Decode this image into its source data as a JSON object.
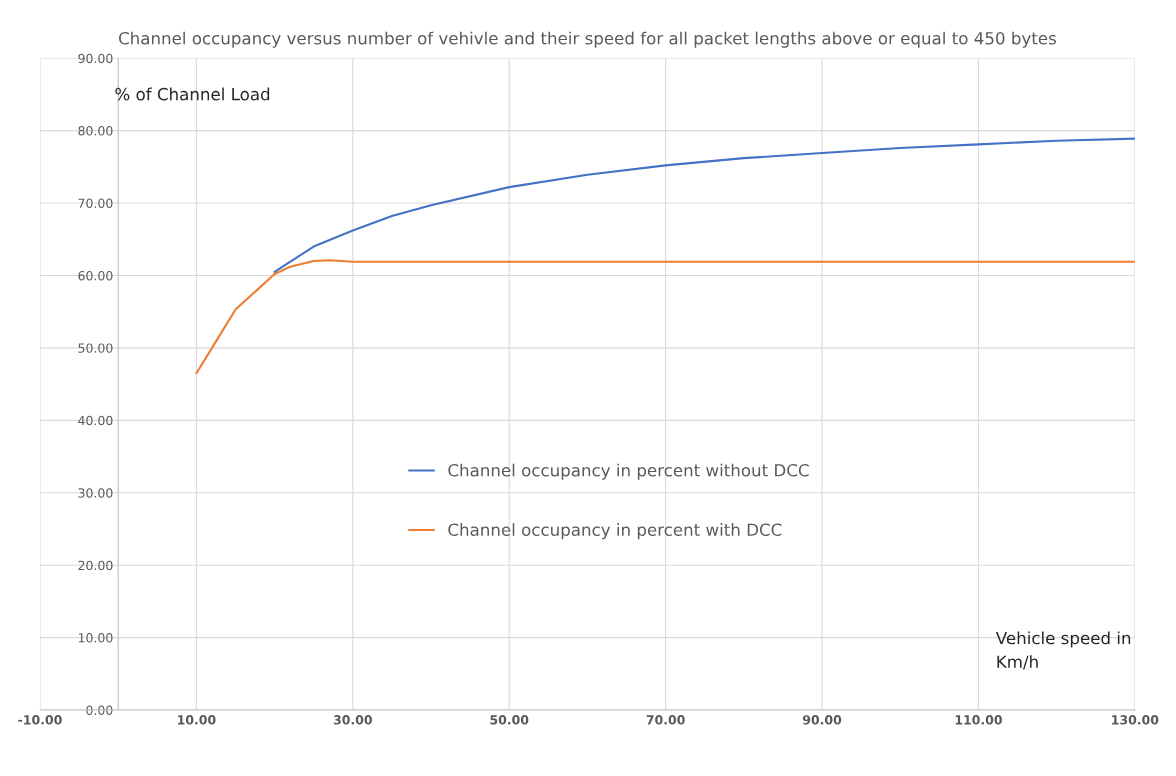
{
  "chart_data": {
    "type": "line",
    "title": "Channel occupancy versus number of vehivle and their speed for all packet lengths above or equal to 450 bytes",
    "ylabel": "% of Channel Load",
    "xlabel": "Vehicle speed in Km/h",
    "xlim": [
      -10,
      130
    ],
    "ylim": [
      0,
      90
    ],
    "xticks": [
      {
        "value": -10,
        "label": "-10.00"
      },
      {
        "value": 10,
        "label": "10.00"
      },
      {
        "value": 30,
        "label": "30.00"
      },
      {
        "value": 50,
        "label": "50.00"
      },
      {
        "value": 70,
        "label": "70.00"
      },
      {
        "value": 90,
        "label": "90.00"
      },
      {
        "value": 110,
        "label": "110.00"
      },
      {
        "value": 130,
        "label": "130.00"
      }
    ],
    "yticks": [
      {
        "value": 0,
        "label": "0.00"
      },
      {
        "value": 10,
        "label": "10.00"
      },
      {
        "value": 20,
        "label": "20.00"
      },
      {
        "value": 30,
        "label": "30.00"
      },
      {
        "value": 40,
        "label": "40.00"
      },
      {
        "value": 50,
        "label": "50.00"
      },
      {
        "value": 60,
        "label": "60.00"
      },
      {
        "value": 70,
        "label": "70.00"
      },
      {
        "value": 80,
        "label": "80.00"
      },
      {
        "value": 90,
        "label": "90.00"
      }
    ],
    "grid": true,
    "legend": "center",
    "marker": "none",
    "line_style": "solid",
    "series": [
      {
        "name": "Channel occupancy in percent without DCC",
        "color": "#4472c4",
        "x": [
          20,
          25,
          30,
          35,
          40,
          50,
          60,
          70,
          80,
          90,
          100,
          110,
          120,
          130
        ],
        "values": [
          60.5,
          64,
          66.2,
          68.2,
          69.7,
          72.2,
          73.9,
          75.2,
          76.2,
          76.9,
          77.6,
          78.1,
          78.6,
          78.9
        ]
      },
      {
        "name": "Channel occupancy in percent with DCC",
        "color": "#ed7d31",
        "x": [
          10,
          12,
          15,
          20,
          22,
          25,
          27,
          30,
          40,
          60,
          80,
          100,
          130
        ],
        "values": [
          46.5,
          50,
          55.3,
          60.2,
          61.2,
          62,
          62.1,
          61.9,
          61.9,
          61.9,
          61.9,
          61.9,
          61.9
        ]
      }
    ]
  }
}
